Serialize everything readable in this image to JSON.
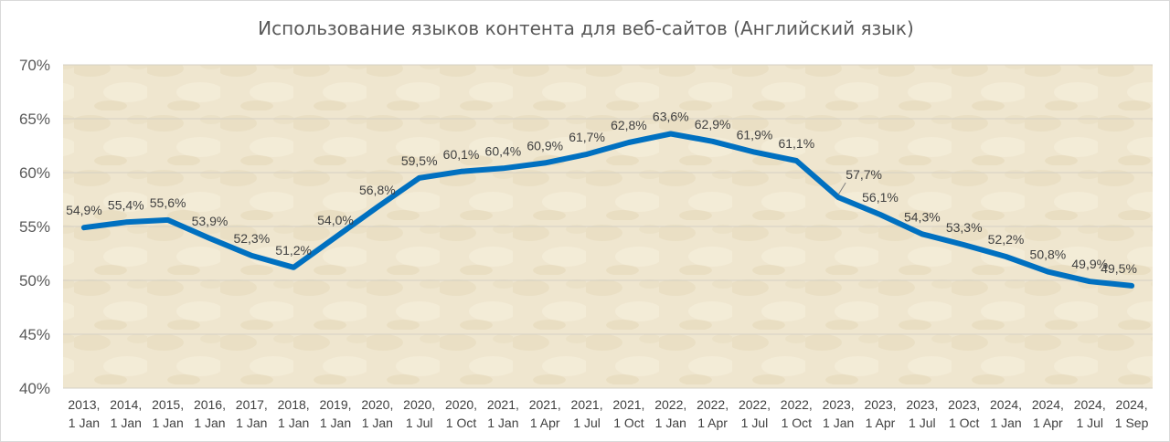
{
  "chart_data": {
    "type": "line",
    "title": "Использование языков контента для веб-сайтов (Английский язык)",
    "xlabel": "",
    "ylabel": "",
    "ylim": [
      40,
      70
    ],
    "y_ticks": [
      "40%",
      "45%",
      "50%",
      "55%",
      "60%",
      "65%",
      "70%"
    ],
    "grid": true,
    "legend": "none",
    "categories": [
      [
        "2013,",
        "1 Jan"
      ],
      [
        "2014,",
        "1 Jan"
      ],
      [
        "2015,",
        "1 Jan"
      ],
      [
        "2016,",
        "1 Jan"
      ],
      [
        "2017,",
        "1 Jan"
      ],
      [
        "2018,",
        "1 Jan"
      ],
      [
        "2019,",
        "1 Jan"
      ],
      [
        "2020,",
        "1 Jan"
      ],
      [
        "2020,",
        "1 Jul"
      ],
      [
        "2020,",
        "1 Oct"
      ],
      [
        "2021,",
        "1 Jan"
      ],
      [
        "2021,",
        "1 Apr"
      ],
      [
        "2021,",
        "1 Jul"
      ],
      [
        "2021,",
        "1 Oct"
      ],
      [
        "2022,",
        "1 Jan"
      ],
      [
        "2022,",
        "1 Apr"
      ],
      [
        "2022,",
        "1 Jul"
      ],
      [
        "2022,",
        "1 Oct"
      ],
      [
        "2023,",
        "1 Jan"
      ],
      [
        "2023,",
        "1 Apr"
      ],
      [
        "2023,",
        "1 Jul"
      ],
      [
        "2023,",
        "1 Oct"
      ],
      [
        "2024,",
        "1 Jan"
      ],
      [
        "2024,",
        "1 Apr"
      ],
      [
        "2024,",
        "1 Jul"
      ],
      [
        "2024,",
        "1 Sep"
      ]
    ],
    "values": [
      54.9,
      55.4,
      55.6,
      53.9,
      52.3,
      51.2,
      54.0,
      56.8,
      59.5,
      60.1,
      60.4,
      60.9,
      61.7,
      62.8,
      63.6,
      62.9,
      61.9,
      61.1,
      57.7,
      56.1,
      54.3,
      53.3,
      52.2,
      50.8,
      49.9,
      49.5
    ],
    "data_labels": [
      "54,9%",
      "55,4%",
      "55,6%",
      "53,9%",
      "52,3%",
      "51,2%",
      "54,0%",
      "56,8%",
      "59,5%",
      "60,1%",
      "60,4%",
      "60,9%",
      "61,7%",
      "62,8%",
      "63,6%",
      "62,9%",
      "61,9%",
      "61,1%",
      "57,7%",
      "56,1%",
      "54,3%",
      "53,3%",
      "52,2%",
      "50,8%",
      "49,9%",
      "49,5%"
    ],
    "line_color": "#0070c0",
    "background": "parchment"
  }
}
